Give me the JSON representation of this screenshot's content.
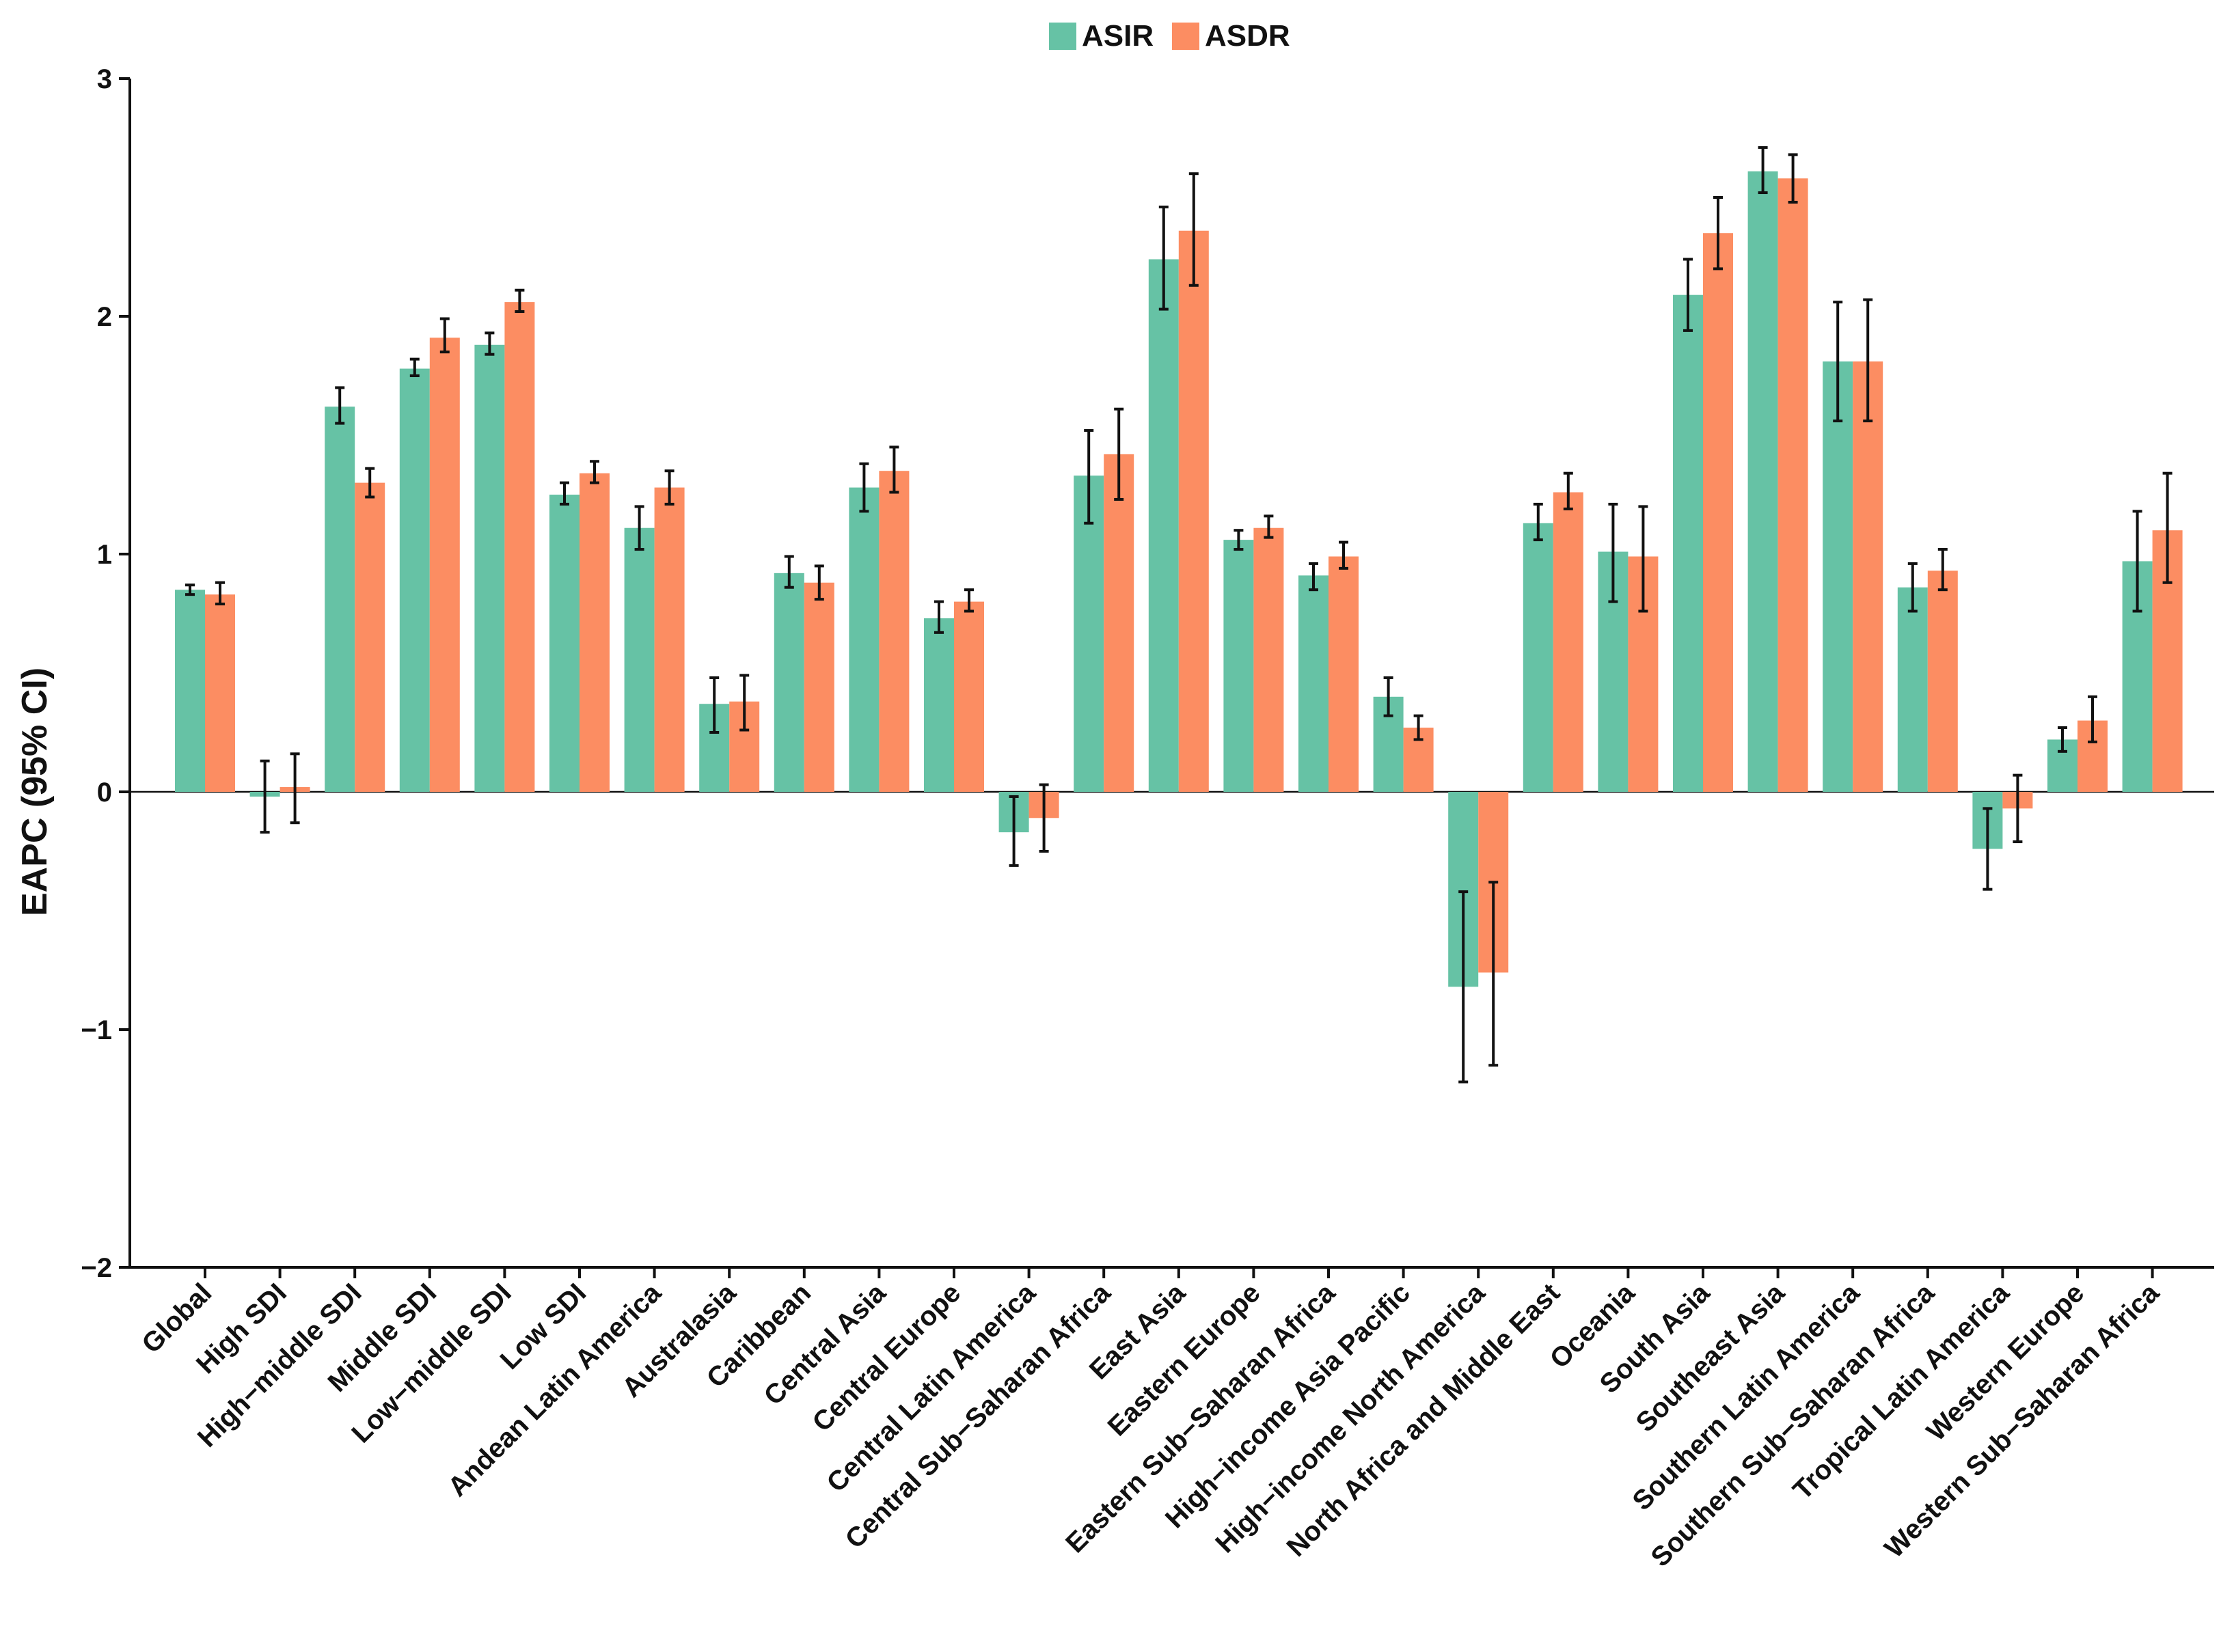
{
  "chart_data": {
    "type": "bar",
    "title": "",
    "xlabel": "",
    "ylabel": "EAPC (95% CI)",
    "ylim": [
      -2,
      3
    ],
    "yticks": [
      -2,
      -1,
      0,
      1,
      2,
      3
    ],
    "ytick_labels": [
      "−2",
      "−1",
      "0",
      "1",
      "2",
      "3"
    ],
    "grid": false,
    "legend_position": "top-center",
    "categories": [
      "Global",
      "High SDI",
      "High−middle SDI",
      "Middle SDI",
      "Low−middle SDI",
      "Low SDI",
      "Andean Latin America",
      "Australasia",
      "Caribbean",
      "Central Asia",
      "Central Europe",
      "Central Latin America",
      "Central Sub−Saharan Africa",
      "East Asia",
      "Eastern Europe",
      "Eastern Sub−Saharan Africa",
      "High−income Asia Pacific",
      "High−income North America",
      "North Africa and Middle East",
      "Oceania",
      "South Asia",
      "Southeast Asia",
      "Southern Latin America",
      "Southern Sub−Saharan Africa",
      "Tropical Latin America",
      "Western Europe",
      "Western Sub−Saharan Africa"
    ],
    "series": [
      {
        "name": "ASIR",
        "color": "#66C2A5",
        "values": [
          0.85,
          -0.02,
          1.62,
          1.78,
          1.88,
          1.25,
          1.11,
          0.37,
          0.92,
          1.28,
          0.73,
          -0.17,
          1.33,
          2.24,
          1.06,
          0.91,
          0.4,
          -0.82,
          1.13,
          1.01,
          2.09,
          2.61,
          1.81,
          0.86,
          -0.24,
          0.22,
          0.97
        ],
        "ci_low": [
          0.83,
          -0.17,
          1.55,
          1.75,
          1.84,
          1.21,
          1.02,
          0.25,
          0.86,
          1.18,
          0.67,
          -0.31,
          1.13,
          2.03,
          1.02,
          0.85,
          0.32,
          -1.22,
          1.06,
          0.8,
          1.94,
          2.52,
          1.56,
          0.76,
          -0.41,
          0.17,
          0.76
        ],
        "ci_high": [
          0.87,
          0.13,
          1.7,
          1.82,
          1.93,
          1.3,
          1.2,
          0.48,
          0.99,
          1.38,
          0.8,
          -0.02,
          1.52,
          2.46,
          1.1,
          0.96,
          0.48,
          -0.42,
          1.21,
          1.21,
          2.24,
          2.71,
          2.06,
          0.96,
          -0.07,
          0.27,
          1.18
        ]
      },
      {
        "name": "ASDR",
        "color": "#FC8D62",
        "values": [
          0.83,
          0.02,
          1.3,
          1.91,
          2.06,
          1.34,
          1.28,
          0.38,
          0.88,
          1.35,
          0.8,
          -0.11,
          1.42,
          2.36,
          1.11,
          0.99,
          0.27,
          -0.76,
          1.26,
          0.99,
          2.35,
          2.58,
          1.81,
          0.93,
          -0.07,
          0.3,
          1.1
        ],
        "ci_low": [
          0.79,
          -0.13,
          1.24,
          1.85,
          2.02,
          1.3,
          1.21,
          0.26,
          0.81,
          1.26,
          0.76,
          -0.25,
          1.23,
          2.13,
          1.07,
          0.94,
          0.22,
          -1.15,
          1.19,
          0.76,
          2.2,
          2.48,
          1.56,
          0.85,
          -0.21,
          0.21,
          0.88
        ],
        "ci_high": [
          0.88,
          0.16,
          1.36,
          1.99,
          2.11,
          1.39,
          1.35,
          0.49,
          0.95,
          1.45,
          0.85,
          0.03,
          1.61,
          2.6,
          1.16,
          1.05,
          0.32,
          -0.38,
          1.34,
          1.2,
          2.5,
          2.68,
          2.07,
          1.02,
          0.07,
          0.4,
          1.34
        ]
      }
    ]
  }
}
